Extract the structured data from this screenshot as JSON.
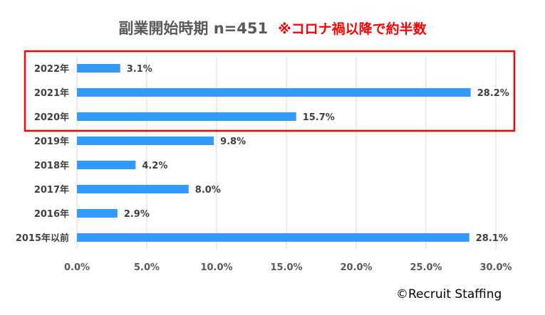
{
  "chart_data": {
    "type": "bar",
    "orientation": "horizontal",
    "title": "副業開始時期 n=451",
    "annotation": "※コロナ禍以降で約半数",
    "categories": [
      "2022年",
      "2021年",
      "2020年",
      "2019年",
      "2018年",
      "2017年",
      "2016年",
      "2015年以前"
    ],
    "values": [
      3.1,
      28.2,
      15.7,
      9.8,
      4.2,
      8.0,
      2.9,
      28.1
    ],
    "data_labels": [
      "3.1%",
      "28.2%",
      "15.7%",
      "9.8%",
      "4.2%",
      "8.0%",
      "2.9%",
      "28.1%"
    ],
    "xlim": [
      0,
      30
    ],
    "x_ticks": [
      0,
      5,
      10,
      15,
      20,
      25,
      30
    ],
    "x_tick_labels": [
      "0.0%",
      "5.0%",
      "10.0%",
      "15.0%",
      "20.0%",
      "25.0%",
      "30.0%"
    ],
    "grid": true,
    "highlight_categories": [
      "2022年",
      "2021年",
      "2020年"
    ],
    "colors": {
      "bar": "#3399ff",
      "highlight_box": "#ff0000",
      "grid": "#d9d9d9",
      "annotation": "#ff0000",
      "title": "#595959"
    }
  },
  "credit": "©Recruit Staffing"
}
